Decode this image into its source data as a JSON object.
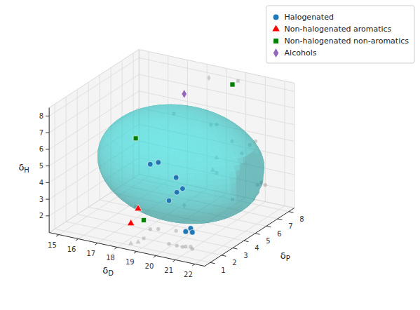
{
  "chart_data": {
    "type": "scatter3d",
    "xlabel": "δD",
    "ylabel": "δP",
    "zlabel": "δH",
    "xlim": [
      14.5,
      22.5
    ],
    "ylim": [
      0.5,
      8.5
    ],
    "zlim": [
      1.0,
      8.5
    ],
    "xticks": [
      15,
      16,
      17,
      18,
      19,
      20,
      21,
      22
    ],
    "yticks": [
      1,
      2,
      3,
      4,
      5,
      6,
      7,
      8
    ],
    "zticks": [
      2,
      3,
      4,
      5,
      6,
      7,
      8
    ],
    "grid": true,
    "legend": "upper right",
    "ellipsoid": {
      "center": [
        19.0,
        4.5,
        4.5
      ],
      "radii": [
        4.0,
        2.8,
        3.2
      ],
      "color": "#20b8b8"
    },
    "series": [
      {
        "name": "Halogenated",
        "color": "#1f77b4",
        "marker": "circle",
        "x": [
          18.2,
          18.5,
          19.3,
          20.2,
          20.5,
          19.8,
          20.6,
          20.8,
          21.0
        ],
        "y": [
          3.1,
          3.3,
          3.5,
          2.0,
          2.0,
          2.0,
          2.1,
          2.2,
          2.0
        ],
        "z": [
          4.9,
          5.0,
          4.2,
          4.2,
          4.5,
          3.6,
          1.9,
          2.1,
          2.0
        ]
      },
      {
        "name": "Non-halogenated aromatics",
        "color": "red",
        "marker": "triangle",
        "x": [
          18.5,
          18.3
        ],
        "y": [
          1.5,
          1.2
        ],
        "z": [
          3.0,
          2.2
        ]
      },
      {
        "name": "Non-halogenated non-aromatics",
        "color": "green",
        "marker": "square",
        "x": [
          16.3,
          18.5,
          19.6
        ],
        "y": [
          5.1,
          2.0,
          8.0
        ],
        "z": [
          5.1,
          2.1,
          7.9
        ]
      },
      {
        "name": "Alcohols",
        "color": "#9467bd",
        "marker": "diamond",
        "x": [
          18.1
        ],
        "y": [
          6.3
        ],
        "z": [
          7.7
        ]
      }
    ]
  }
}
